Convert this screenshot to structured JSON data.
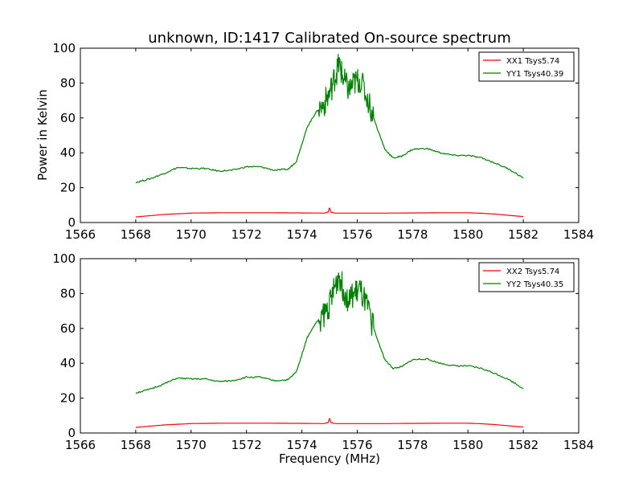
{
  "figure": {
    "title": "unknown, ID:1417 Calibrated On-source spectrum",
    "ylabel": "Power in Kelvin",
    "xlabel": "Frequency (MHz)"
  },
  "colors": {
    "xx": "#ff0000",
    "yy": "#008000"
  },
  "chart_data": [
    {
      "type": "line",
      "xlim": [
        1566,
        1584
      ],
      "ylim": [
        0,
        100
      ],
      "xticks": [
        1566,
        1568,
        1570,
        1572,
        1574,
        1576,
        1578,
        1580,
        1582,
        1584
      ],
      "yticks": [
        0,
        20,
        40,
        60,
        80,
        100
      ],
      "grid": false,
      "legend_position": "top-right",
      "series": [
        {
          "name": "XX1 Tsys5.74",
          "color": "#ff0000",
          "x": [
            1568.0,
            1569.0,
            1570.0,
            1571.0,
            1572.0,
            1573.0,
            1574.0,
            1574.8,
            1574.95,
            1575.0,
            1575.05,
            1575.2,
            1576.0,
            1577.0,
            1578.0,
            1579.0,
            1580.0,
            1580.5,
            1581.0,
            1581.5,
            1582.0
          ],
          "y": [
            3.2,
            4.6,
            5.4,
            5.6,
            5.6,
            5.6,
            5.5,
            5.4,
            6.0,
            8.5,
            6.0,
            5.4,
            5.4,
            5.4,
            5.5,
            5.6,
            5.6,
            5.3,
            4.8,
            4.1,
            3.4
          ]
        },
        {
          "name": "YY1 Tsys40.39",
          "color": "#008000",
          "x": [
            1568.0,
            1568.5,
            1569.0,
            1569.5,
            1570.0,
            1570.5,
            1571.0,
            1571.5,
            1572.0,
            1572.5,
            1573.0,
            1573.5,
            1573.8,
            1574.0,
            1574.2,
            1574.5,
            1574.8,
            1575.0,
            1575.2,
            1575.35,
            1575.5,
            1575.7,
            1575.9,
            1576.1,
            1576.4,
            1576.7,
            1577.0,
            1577.3,
            1577.6,
            1578.0,
            1578.5,
            1579.0,
            1579.5,
            1580.0,
            1580.5,
            1581.0,
            1581.5,
            1582.0
          ],
          "y": [
            23,
            25,
            28,
            31.5,
            31,
            31,
            29.5,
            30,
            32,
            32,
            30,
            30.5,
            35,
            45,
            55,
            63,
            68,
            74,
            84,
            91,
            82,
            76,
            80,
            82,
            70,
            55,
            42,
            37,
            38,
            42,
            42.5,
            40,
            38.5,
            38.5,
            37,
            34,
            30.5,
            25.5
          ]
        }
      ]
    },
    {
      "type": "line",
      "xlim": [
        1566,
        1584
      ],
      "ylim": [
        0,
        100
      ],
      "xticks": [
        1566,
        1568,
        1570,
        1572,
        1574,
        1576,
        1578,
        1580,
        1582,
        1584
      ],
      "yticks": [
        0,
        20,
        40,
        60,
        80,
        100
      ],
      "grid": false,
      "legend_position": "top-right",
      "series": [
        {
          "name": "XX2 Tsys5.74",
          "color": "#ff0000",
          "x": [
            1568.0,
            1569.0,
            1570.0,
            1571.0,
            1572.0,
            1573.0,
            1574.0,
            1574.8,
            1574.95,
            1575.0,
            1575.05,
            1575.2,
            1576.0,
            1577.0,
            1578.0,
            1579.0,
            1580.0,
            1580.5,
            1581.0,
            1581.5,
            1582.0
          ],
          "y": [
            3.2,
            4.6,
            5.4,
            5.6,
            5.6,
            5.6,
            5.5,
            5.4,
            6.0,
            8.5,
            6.0,
            5.4,
            5.4,
            5.4,
            5.5,
            5.6,
            5.6,
            5.3,
            4.8,
            4.1,
            3.4
          ]
        },
        {
          "name": "YY2 Tsys40.35",
          "color": "#008000",
          "x": [
            1568.0,
            1568.5,
            1569.0,
            1569.5,
            1570.0,
            1570.5,
            1571.0,
            1571.5,
            1572.0,
            1572.5,
            1573.0,
            1573.5,
            1573.8,
            1574.0,
            1574.2,
            1574.5,
            1574.8,
            1575.0,
            1575.2,
            1575.35,
            1575.5,
            1575.7,
            1575.9,
            1576.1,
            1576.4,
            1576.7,
            1577.0,
            1577.3,
            1577.6,
            1578.0,
            1578.5,
            1579.0,
            1579.5,
            1580.0,
            1580.5,
            1581.0,
            1581.5,
            1582.0
          ],
          "y": [
            23,
            25,
            28,
            31.5,
            31,
            31,
            29.5,
            30,
            32,
            32,
            30,
            30.5,
            35,
            45,
            55,
            63,
            68,
            74,
            84,
            91,
            82,
            76,
            80,
            82,
            70,
            55,
            42,
            37,
            38,
            42,
            42.5,
            40,
            38.5,
            38.5,
            37,
            34,
            30.5,
            25.5
          ]
        }
      ]
    }
  ]
}
